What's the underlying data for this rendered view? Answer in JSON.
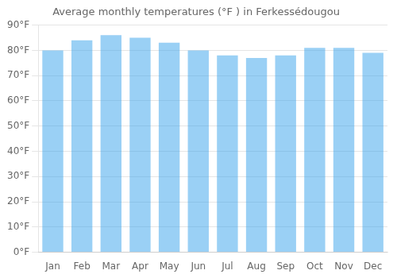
{
  "chart_data": {
    "type": "bar",
    "title": "Average monthly temperatures (°F ) in Ferkessédougou",
    "categories": [
      "Jan",
      "Feb",
      "Mar",
      "Apr",
      "May",
      "Jun",
      "Jul",
      "Aug",
      "Sep",
      "Oct",
      "Nov",
      "Dec"
    ],
    "values": [
      80,
      84,
      86,
      85,
      83,
      80,
      78,
      77,
      78,
      81,
      81,
      79
    ],
    "ylim": [
      0,
      90
    ],
    "yticks": [
      {
        "value": 0,
        "label": "0°F"
      },
      {
        "value": 10,
        "label": "10°F"
      },
      {
        "value": 20,
        "label": "20°F"
      },
      {
        "value": 30,
        "label": "30°F"
      },
      {
        "value": 40,
        "label": "40°F"
      },
      {
        "value": 50,
        "label": "50°F"
      },
      {
        "value": 60,
        "label": "60°F"
      },
      {
        "value": 70,
        "label": "70°F"
      },
      {
        "value": 80,
        "label": "80°F"
      },
      {
        "value": 90,
        "label": "90°F"
      }
    ],
    "grid": true
  }
}
